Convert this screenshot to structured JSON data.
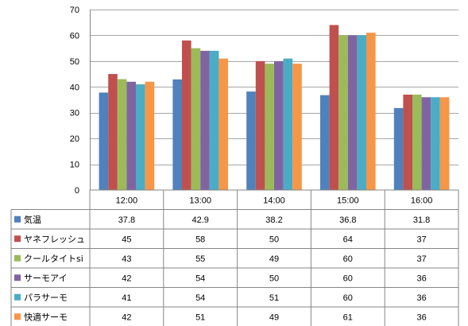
{
  "chart_data": {
    "type": "bar",
    "categories": [
      "12:00",
      "13:00",
      "14:00",
      "15:00",
      "16:00"
    ],
    "series": [
      {
        "name": "気温",
        "color": "#4F81BD",
        "values": [
          37.8,
          42.9,
          38.2,
          36.8,
          31.8
        ],
        "labels": [
          "37.8",
          "42.9",
          "38.2",
          "36.8",
          "31.8"
        ]
      },
      {
        "name": "ヤネフレッシュ",
        "color": "#C0504D",
        "values": [
          45,
          58,
          50,
          64,
          37
        ],
        "labels": [
          "45",
          "58",
          "50",
          "64",
          "37"
        ]
      },
      {
        "name": "クールタイトsi",
        "color": "#9BBB59",
        "values": [
          43,
          55,
          49,
          60,
          37
        ],
        "labels": [
          "43",
          "55",
          "49",
          "60",
          "37"
        ]
      },
      {
        "name": "サーモアイ",
        "color": "#8064A2",
        "values": [
          42,
          54,
          50,
          60,
          36
        ],
        "labels": [
          "42",
          "54",
          "50",
          "60",
          "36"
        ]
      },
      {
        "name": "パラサーモ",
        "color": "#4BACC6",
        "values": [
          41,
          54,
          51,
          60,
          36
        ],
        "labels": [
          "41",
          "54",
          "51",
          "60",
          "36"
        ]
      },
      {
        "name": "快適サーモ",
        "color": "#F79646",
        "values": [
          42,
          51,
          49,
          61,
          36
        ],
        "labels": [
          "42",
          "51",
          "49",
          "61",
          "36"
        ]
      }
    ],
    "y_ticks": [
      "0",
      "10",
      "20",
      "30",
      "40",
      "50",
      "60",
      "70"
    ],
    "ylim": [
      0,
      70
    ],
    "grid": "horizontal",
    "legend": "data-table"
  }
}
